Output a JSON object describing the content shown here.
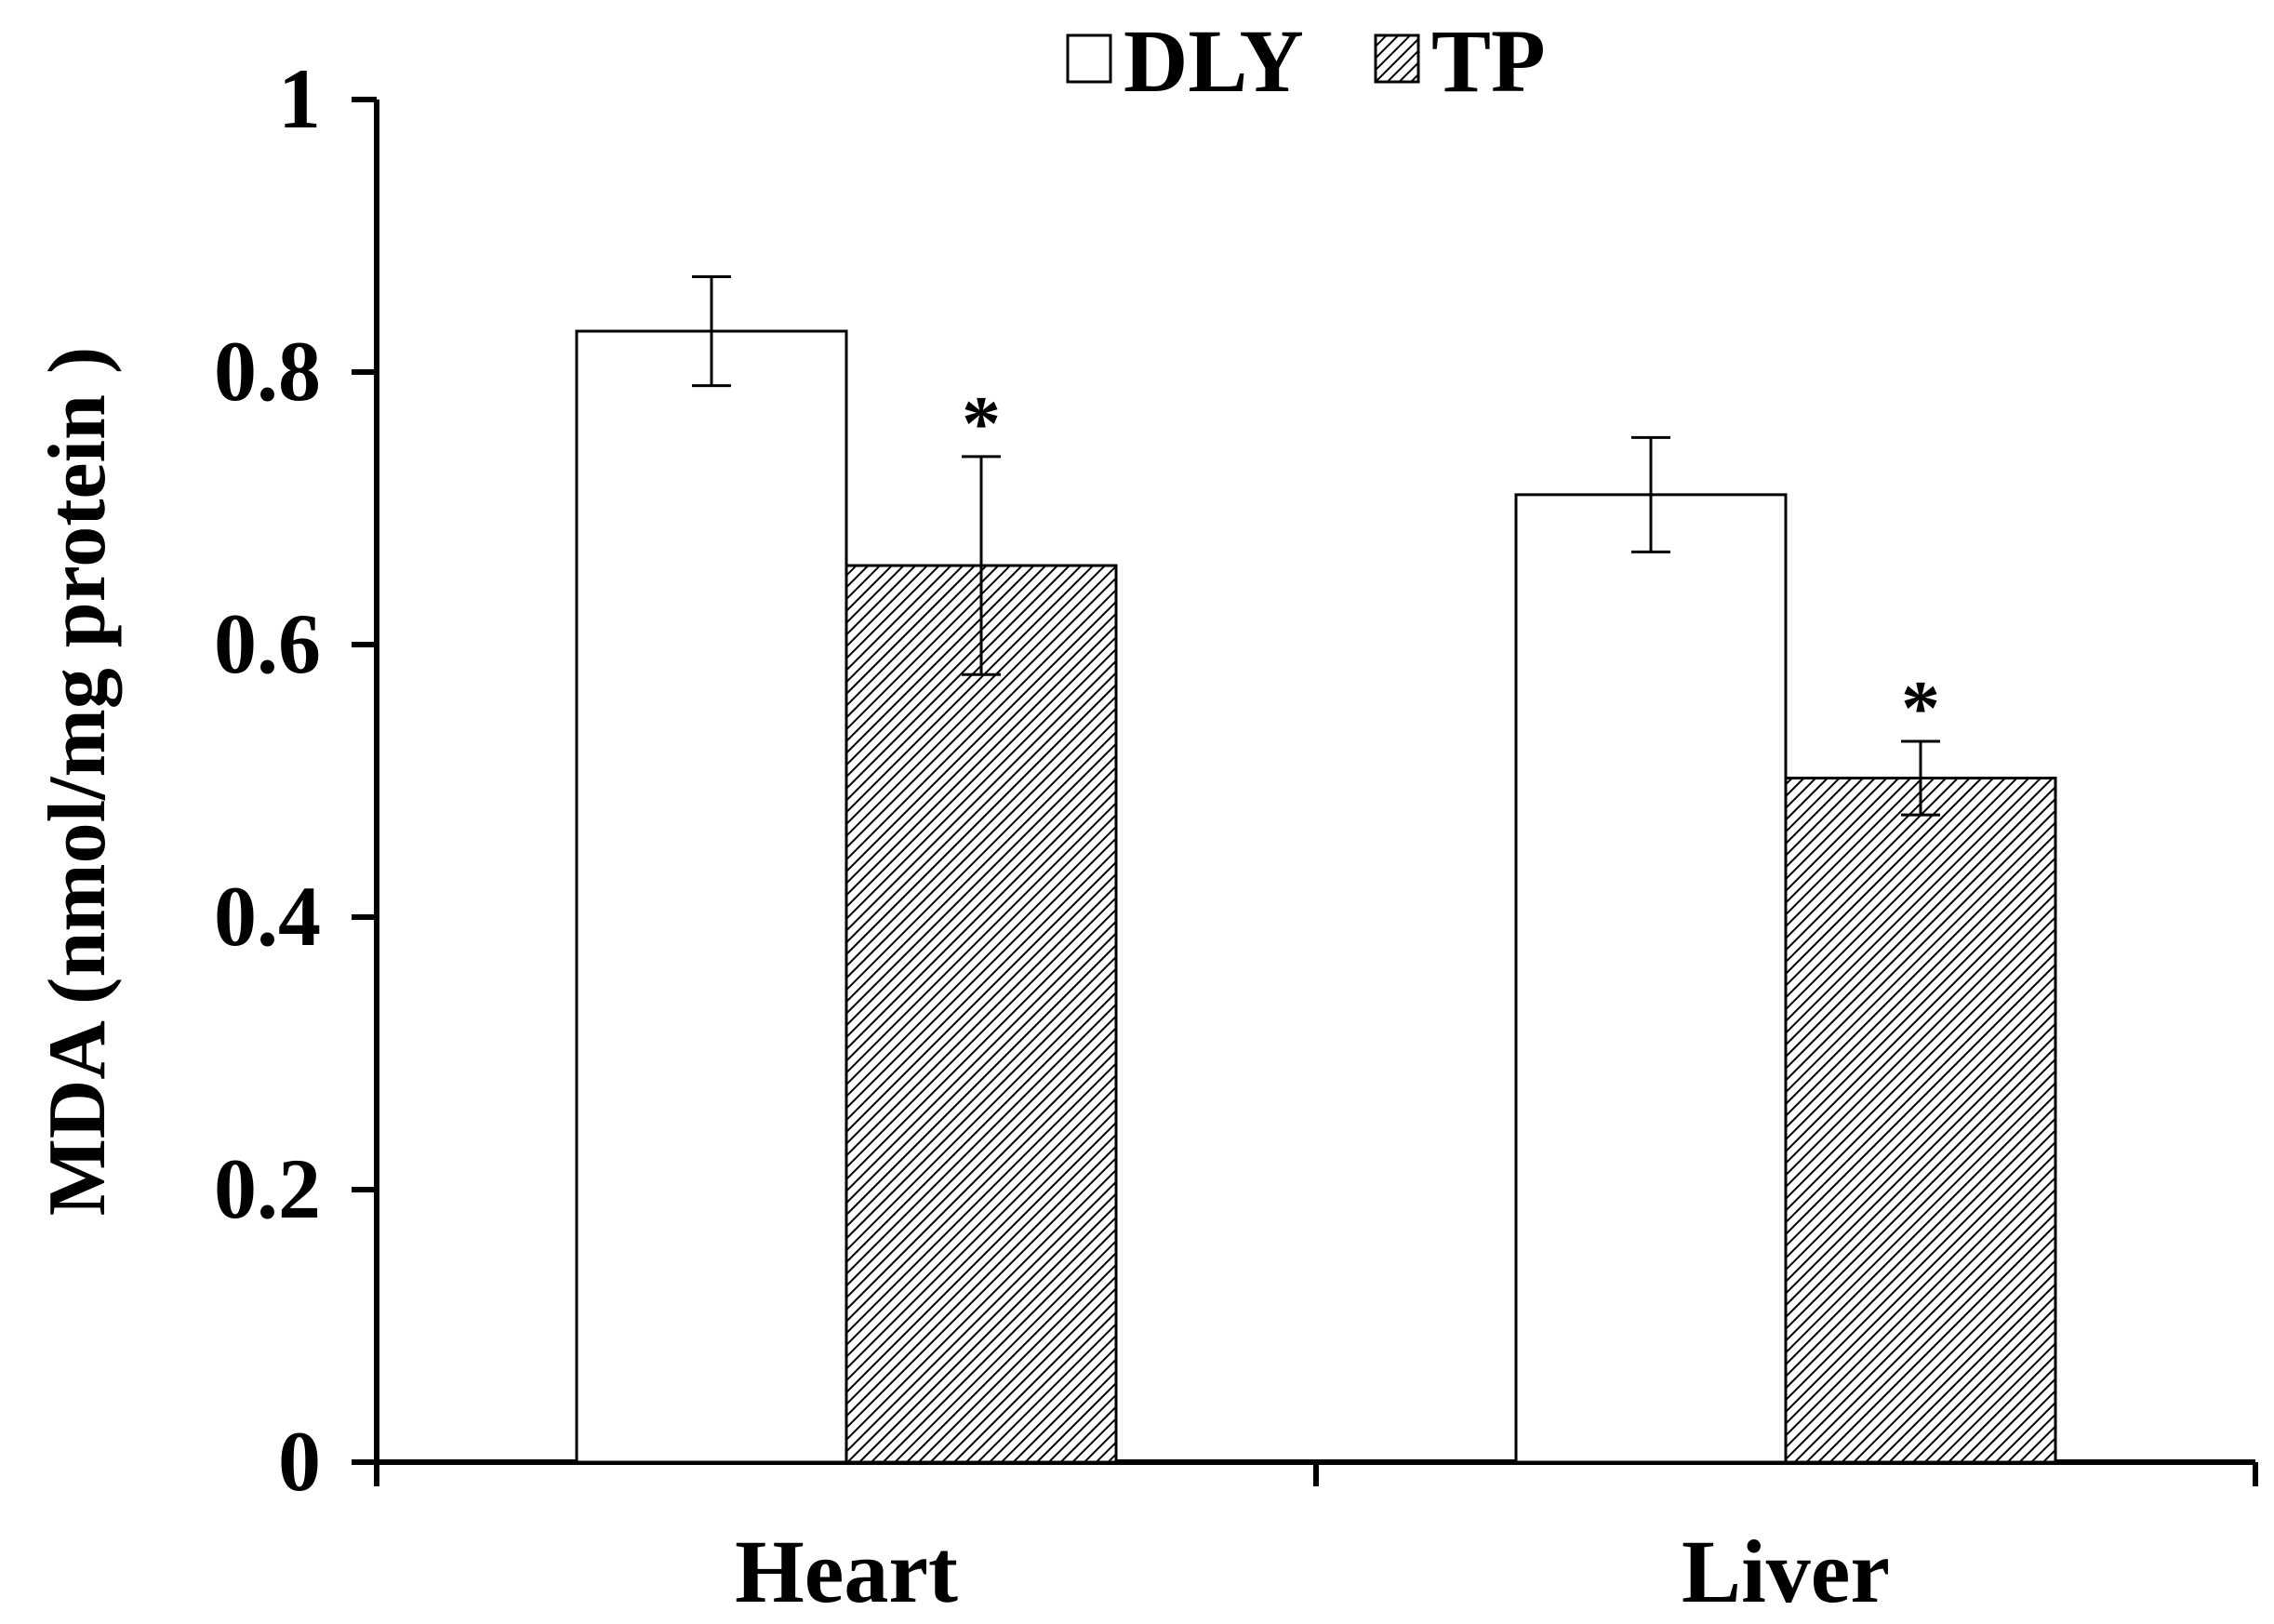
{
  "chart_data": {
    "type": "bar",
    "title": "",
    "xlabel": "",
    "ylabel": "MDA (nmol/mg  protein )",
    "ylim": [
      0,
      1
    ],
    "yticks": [
      "0",
      "0.2",
      "0.4",
      "0.6",
      "0.8",
      "1"
    ],
    "ytick_values": [
      0,
      0.2,
      0.4,
      0.6,
      0.8,
      1
    ],
    "categories": [
      "Heart",
      "Liver"
    ],
    "series": [
      {
        "name": "DLY",
        "fill": "white",
        "values": [
          0.83,
          0.71
        ],
        "errors": [
          0.04,
          0.042
        ],
        "significance": [
          "",
          ""
        ]
      },
      {
        "name": "TP",
        "fill": "hatched",
        "values": [
          0.658,
          0.502
        ],
        "errors": [
          0.08,
          0.027
        ],
        "significance": [
          "*",
          "*"
        ]
      }
    ],
    "legend_position": "top-center",
    "grid": false
  },
  "colors": {
    "axis": "#000000",
    "bar_edge": "#000000",
    "dly_fill": "#ffffff",
    "tp_hatch": "#000000",
    "background": "#ffffff"
  }
}
